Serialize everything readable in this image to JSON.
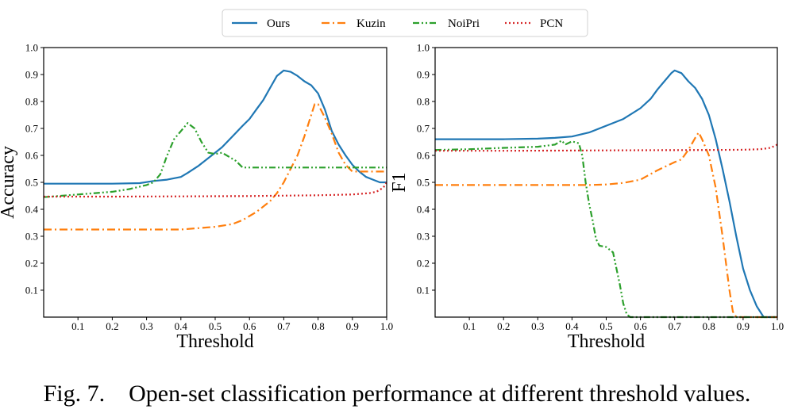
{
  "legend": {
    "placement": "top-center",
    "entries": [
      {
        "name": "Ours",
        "color": "#1f77b4",
        "dash": "solid"
      },
      {
        "name": "Kuzin",
        "color": "#ff7f0e",
        "dash": "dashdot"
      },
      {
        "name": "NoiPri",
        "color": "#2ca02c",
        "dash": "dashdotdot"
      },
      {
        "name": "PCN",
        "color": "#d62728",
        "dash": "dotted"
      }
    ]
  },
  "caption": {
    "number": "Fig. 7.",
    "text": "Open-set classification performance at different threshold values."
  },
  "chart_data": [
    {
      "type": "line",
      "xlabel": "Threshold",
      "ylabel": "Accuracy",
      "xlim": [
        0,
        1.0
      ],
      "ylim": [
        0,
        1.0
      ],
      "xticks": [
        "0.1",
        "0.2",
        "0.3",
        "0.4",
        "0.5",
        "0.6",
        "0.7",
        "0.8",
        "0.9",
        "1.0"
      ],
      "yticks": [
        "0.1",
        "0.2",
        "0.3",
        "0.4",
        "0.5",
        "0.6",
        "0.7",
        "0.8",
        "0.9",
        "1.0"
      ],
      "grid": false,
      "series": [
        {
          "name": "Ours",
          "x": [
            0.0,
            0.1,
            0.2,
            0.28,
            0.32,
            0.36,
            0.4,
            0.42,
            0.45,
            0.48,
            0.5,
            0.52,
            0.55,
            0.58,
            0.6,
            0.62,
            0.64,
            0.66,
            0.68,
            0.7,
            0.72,
            0.74,
            0.76,
            0.78,
            0.8,
            0.82,
            0.84,
            0.86,
            0.88,
            0.9,
            0.92,
            0.94,
            0.96,
            0.98,
            1.0
          ],
          "y": [
            0.495,
            0.495,
            0.495,
            0.497,
            0.505,
            0.51,
            0.52,
            0.535,
            0.56,
            0.59,
            0.61,
            0.63,
            0.67,
            0.71,
            0.735,
            0.77,
            0.805,
            0.85,
            0.895,
            0.915,
            0.91,
            0.895,
            0.875,
            0.86,
            0.83,
            0.77,
            0.69,
            0.64,
            0.6,
            0.565,
            0.54,
            0.52,
            0.51,
            0.5,
            0.5
          ]
        },
        {
          "name": "Kuzin",
          "x": [
            0.0,
            0.1,
            0.2,
            0.3,
            0.4,
            0.45,
            0.5,
            0.55,
            0.58,
            0.6,
            0.62,
            0.64,
            0.66,
            0.68,
            0.7,
            0.72,
            0.74,
            0.76,
            0.78,
            0.79,
            0.8,
            0.82,
            0.84,
            0.86,
            0.88,
            0.9,
            0.95,
            1.0
          ],
          "y": [
            0.325,
            0.325,
            0.325,
            0.325,
            0.325,
            0.33,
            0.335,
            0.345,
            0.36,
            0.375,
            0.39,
            0.41,
            0.43,
            0.46,
            0.5,
            0.55,
            0.6,
            0.67,
            0.75,
            0.79,
            0.79,
            0.74,
            0.68,
            0.61,
            0.565,
            0.54,
            0.54,
            0.54
          ]
        },
        {
          "name": "NoiPri",
          "x": [
            0.0,
            0.05,
            0.1,
            0.15,
            0.2,
            0.25,
            0.3,
            0.32,
            0.34,
            0.36,
            0.38,
            0.4,
            0.42,
            0.44,
            0.46,
            0.48,
            0.5,
            0.52,
            0.54,
            0.56,
            0.58,
            0.6,
            0.7,
            0.8,
            0.9,
            1.0
          ],
          "y": [
            0.445,
            0.45,
            0.455,
            0.46,
            0.465,
            0.475,
            0.49,
            0.5,
            0.53,
            0.6,
            0.66,
            0.69,
            0.72,
            0.7,
            0.65,
            0.61,
            0.605,
            0.61,
            0.595,
            0.58,
            0.555,
            0.555,
            0.555,
            0.555,
            0.555,
            0.555
          ]
        },
        {
          "name": "PCN",
          "x": [
            0.0,
            0.2,
            0.4,
            0.6,
            0.8,
            0.9,
            0.95,
            0.97,
            0.99,
            1.0
          ],
          "y": [
            0.447,
            0.447,
            0.448,
            0.449,
            0.452,
            0.455,
            0.46,
            0.465,
            0.48,
            0.5
          ]
        }
      ]
    },
    {
      "type": "line",
      "xlabel": "Threshold",
      "ylabel": "F1",
      "xlim": [
        0,
        1.0
      ],
      "ylim": [
        0,
        1.0
      ],
      "xticks": [
        "0.1",
        "0.2",
        "0.3",
        "0.4",
        "0.5",
        "0.6",
        "0.7",
        "0.8",
        "0.9",
        "1.0"
      ],
      "yticks": [
        "0.1",
        "0.2",
        "0.3",
        "0.4",
        "0.5",
        "0.6",
        "0.7",
        "0.8",
        "0.9",
        "1.0"
      ],
      "grid": false,
      "series": [
        {
          "name": "Ours",
          "x": [
            0.0,
            0.1,
            0.2,
            0.3,
            0.35,
            0.4,
            0.45,
            0.5,
            0.55,
            0.6,
            0.63,
            0.65,
            0.67,
            0.69,
            0.7,
            0.72,
            0.74,
            0.76,
            0.78,
            0.8,
            0.82,
            0.84,
            0.86,
            0.88,
            0.9,
            0.92,
            0.94,
            0.96,
            1.0
          ],
          "y": [
            0.66,
            0.66,
            0.66,
            0.662,
            0.665,
            0.67,
            0.685,
            0.71,
            0.735,
            0.775,
            0.81,
            0.845,
            0.875,
            0.905,
            0.915,
            0.905,
            0.875,
            0.85,
            0.81,
            0.75,
            0.66,
            0.55,
            0.43,
            0.3,
            0.18,
            0.1,
            0.04,
            0.0,
            0.0
          ]
        },
        {
          "name": "Kuzin",
          "x": [
            0.0,
            0.1,
            0.2,
            0.3,
            0.4,
            0.45,
            0.5,
            0.55,
            0.6,
            0.65,
            0.7,
            0.72,
            0.74,
            0.76,
            0.77,
            0.78,
            0.8,
            0.82,
            0.84,
            0.86,
            0.87,
            0.88,
            0.89,
            0.9,
            1.0
          ],
          "y": [
            0.49,
            0.49,
            0.49,
            0.49,
            0.49,
            0.49,
            0.492,
            0.498,
            0.51,
            0.545,
            0.575,
            0.585,
            0.62,
            0.665,
            0.685,
            0.66,
            0.6,
            0.48,
            0.3,
            0.1,
            0.02,
            0.0,
            0.0,
            0.0,
            0.0
          ]
        },
        {
          "name": "NoiPri",
          "x": [
            0.0,
            0.1,
            0.2,
            0.3,
            0.35,
            0.37,
            0.38,
            0.4,
            0.42,
            0.43,
            0.44,
            0.45,
            0.46,
            0.47,
            0.48,
            0.5,
            0.52,
            0.54,
            0.55,
            0.56,
            0.57,
            0.6,
            0.8,
            1.0
          ],
          "y": [
            0.62,
            0.623,
            0.628,
            0.632,
            0.64,
            0.655,
            0.64,
            0.652,
            0.645,
            0.6,
            0.5,
            0.42,
            0.36,
            0.29,
            0.265,
            0.26,
            0.24,
            0.12,
            0.05,
            0.01,
            0.0,
            0.0,
            0.0,
            0.0
          ]
        },
        {
          "name": "PCN",
          "x": [
            0.0,
            0.2,
            0.4,
            0.6,
            0.8,
            0.9,
            0.95,
            0.98,
            1.0
          ],
          "y": [
            0.617,
            0.617,
            0.618,
            0.619,
            0.62,
            0.621,
            0.623,
            0.628,
            0.64
          ]
        }
      ]
    }
  ]
}
